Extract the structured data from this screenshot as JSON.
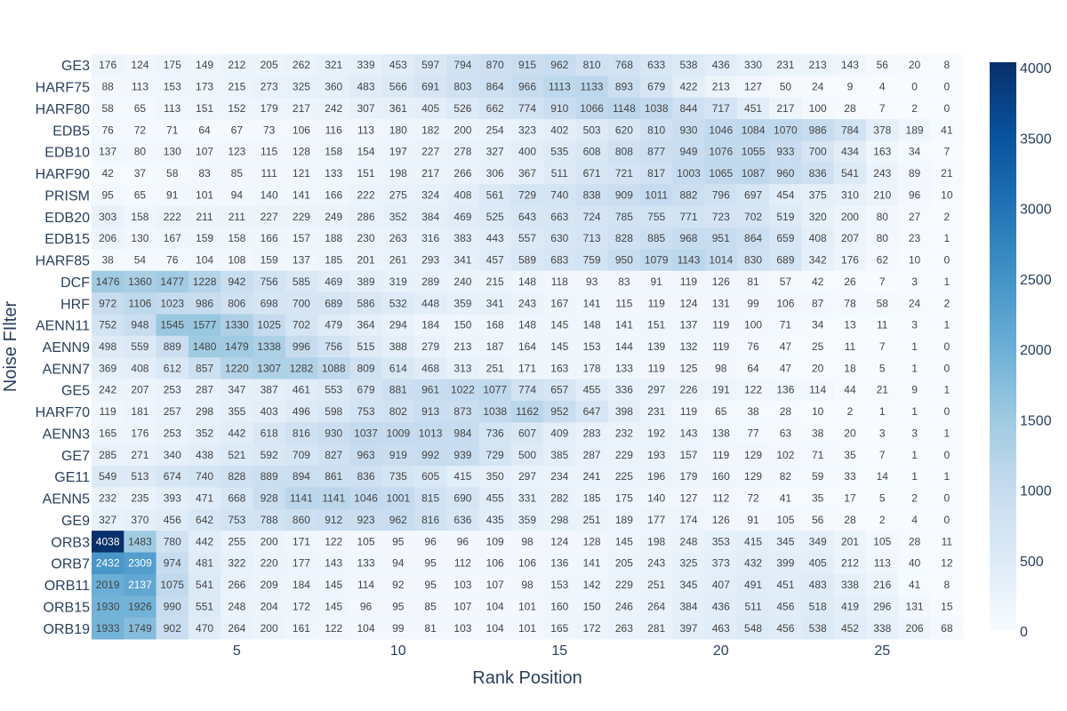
{
  "chart_data": {
    "type": "heatmap",
    "title": "",
    "xlabel": "Rank Position",
    "ylabel": "Noise FIlter",
    "x": [
      1,
      2,
      3,
      4,
      5,
      6,
      7,
      8,
      9,
      10,
      11,
      12,
      13,
      14,
      15,
      16,
      17,
      18,
      19,
      20,
      21,
      22,
      23,
      24,
      25,
      26,
      27
    ],
    "x_ticks": [
      5,
      10,
      15,
      20,
      25
    ],
    "y_categories": [
      "GE3",
      "HARF75",
      "HARF80",
      "EDB5",
      "EDB10",
      "HARF90",
      "PRISM",
      "EDB20",
      "EDB15",
      "HARF85",
      "DCF",
      "HRF",
      "AENN11",
      "AENN9",
      "AENN7",
      "GE5",
      "HARF70",
      "AENN3",
      "GE7",
      "GE11",
      "AENN5",
      "GE9",
      "ORB3",
      "ORB7",
      "ORB11",
      "ORB15",
      "ORB19"
    ],
    "z": [
      [
        176,
        124,
        175,
        149,
        212,
        205,
        262,
        321,
        339,
        453,
        597,
        794,
        870,
        915,
        962,
        810,
        768,
        633,
        538,
        436,
        330,
        231,
        213,
        143,
        56,
        20,
        8
      ],
      [
        88,
        113,
        153,
        173,
        215,
        273,
        325,
        360,
        483,
        566,
        691,
        803,
        864,
        966,
        1113,
        1133,
        893,
        679,
        422,
        213,
        127,
        50,
        24,
        9,
        4,
        0,
        0
      ],
      [
        58,
        65,
        113,
        151,
        152,
        179,
        217,
        242,
        307,
        361,
        405,
        526,
        662,
        774,
        910,
        1066,
        1148,
        1038,
        844,
        717,
        451,
        217,
        100,
        28,
        7,
        2,
        0
      ],
      [
        76,
        72,
        71,
        64,
        67,
        73,
        106,
        116,
        113,
        180,
        182,
        200,
        254,
        323,
        402,
        503,
        620,
        810,
        930,
        1046,
        1084,
        1070,
        986,
        784,
        378,
        189,
        41
      ],
      [
        137,
        80,
        130,
        107,
        123,
        115,
        128,
        158,
        154,
        197,
        227,
        278,
        327,
        400,
        535,
        608,
        808,
        877,
        949,
        1076,
        1055,
        933,
        700,
        434,
        163,
        34,
        7
      ],
      [
        42,
        37,
        58,
        83,
        85,
        111,
        121,
        133,
        151,
        198,
        217,
        266,
        306,
        367,
        511,
        671,
        721,
        817,
        1003,
        1065,
        1087,
        960,
        836,
        541,
        243,
        89,
        21
      ],
      [
        95,
        65,
        91,
        101,
        94,
        140,
        141,
        166,
        222,
        275,
        324,
        408,
        561,
        729,
        740,
        838,
        909,
        1011,
        882,
        796,
        697,
        454,
        375,
        310,
        210,
        96,
        10
      ],
      [
        303,
        158,
        222,
        211,
        211,
        227,
        229,
        249,
        286,
        352,
        384,
        469,
        525,
        643,
        663,
        724,
        785,
        755,
        771,
        723,
        702,
        519,
        320,
        200,
        80,
        27,
        2
      ],
      [
        206,
        130,
        167,
        159,
        158,
        166,
        157,
        188,
        230,
        263,
        316,
        383,
        443,
        557,
        630,
        713,
        828,
        885,
        968,
        951,
        864,
        659,
        408,
        207,
        80,
        23,
        1
      ],
      [
        38,
        54,
        76,
        104,
        108,
        159,
        137,
        185,
        201,
        261,
        293,
        341,
        457,
        589,
        683,
        759,
        950,
        1079,
        1143,
        1014,
        830,
        689,
        342,
        176,
        62,
        10,
        0
      ],
      [
        1476,
        1360,
        1477,
        1228,
        942,
        756,
        585,
        469,
        389,
        319,
        289,
        240,
        215,
        148,
        118,
        93,
        83,
        91,
        119,
        126,
        81,
        57,
        42,
        26,
        7,
        3,
        1
      ],
      [
        972,
        1106,
        1023,
        986,
        806,
        698,
        700,
        689,
        586,
        532,
        448,
        359,
        341,
        243,
        167,
        141,
        115,
        119,
        124,
        131,
        99,
        106,
        87,
        78,
        58,
        24,
        2
      ],
      [
        752,
        948,
        1545,
        1577,
        1330,
        1025,
        702,
        479,
        364,
        294,
        184,
        150,
        168,
        148,
        145,
        148,
        141,
        151,
        137,
        119,
        100,
        71,
        34,
        13,
        11,
        3,
        1
      ],
      [
        498,
        559,
        889,
        1480,
        1479,
        1338,
        996,
        756,
        515,
        388,
        279,
        213,
        187,
        164,
        145,
        153,
        144,
        139,
        132,
        119,
        76,
        47,
        25,
        11,
        7,
        1,
        0
      ],
      [
        369,
        408,
        612,
        857,
        1220,
        1307,
        1282,
        1088,
        809,
        614,
        468,
        313,
        251,
        171,
        163,
        178,
        133,
        119,
        125,
        98,
        64,
        47,
        20,
        18,
        5,
        1,
        0
      ],
      [
        242,
        207,
        253,
        287,
        347,
        387,
        461,
        553,
        679,
        881,
        961,
        1022,
        1077,
        774,
        657,
        455,
        336,
        297,
        226,
        191,
        122,
        136,
        114,
        44,
        21,
        9,
        1
      ],
      [
        119,
        181,
        257,
        298,
        355,
        403,
        496,
        598,
        753,
        802,
        913,
        873,
        1038,
        1162,
        952,
        647,
        398,
        231,
        119,
        65,
        38,
        28,
        10,
        2,
        1,
        1,
        0
      ],
      [
        165,
        176,
        253,
        352,
        442,
        618,
        816,
        930,
        1037,
        1009,
        1013,
        984,
        736,
        607,
        409,
        283,
        232,
        192,
        143,
        138,
        77,
        63,
        38,
        20,
        3,
        3,
        1
      ],
      [
        285,
        271,
        340,
        438,
        521,
        592,
        709,
        827,
        963,
        919,
        992,
        939,
        729,
        500,
        385,
        287,
        229,
        193,
        157,
        119,
        129,
        102,
        71,
        35,
        7,
        1,
        0
      ],
      [
        549,
        513,
        674,
        740,
        828,
        889,
        894,
        861,
        836,
        735,
        605,
        415,
        350,
        297,
        234,
        241,
        225,
        196,
        179,
        160,
        129,
        82,
        59,
        33,
        14,
        1,
        1
      ],
      [
        232,
        235,
        393,
        471,
        668,
        928,
        1141,
        1141,
        1046,
        1001,
        815,
        690,
        455,
        331,
        282,
        185,
        175,
        140,
        127,
        112,
        72,
        41,
        35,
        17,
        5,
        2,
        0
      ],
      [
        327,
        370,
        456,
        642,
        753,
        788,
        860,
        912,
        923,
        962,
        816,
        636,
        435,
        359,
        298,
        251,
        189,
        177,
        174,
        126,
        91,
        105,
        56,
        28,
        2,
        4,
        0
      ],
      [
        4038,
        1483,
        780,
        442,
        255,
        200,
        171,
        122,
        105,
        95,
        96,
        96,
        109,
        98,
        124,
        128,
        145,
        198,
        248,
        353,
        415,
        345,
        349,
        201,
        105,
        28,
        11
      ],
      [
        2432,
        2309,
        974,
        481,
        322,
        220,
        177,
        143,
        133,
        94,
        95,
        112,
        106,
        106,
        136,
        141,
        205,
        243,
        325,
        373,
        432,
        399,
        405,
        212,
        113,
        40,
        12
      ],
      [
        2019,
        2137,
        1075,
        541,
        266,
        209,
        184,
        145,
        114,
        92,
        95,
        103,
        107,
        98,
        153,
        142,
        229,
        251,
        345,
        407,
        491,
        451,
        483,
        338,
        216,
        41,
        8
      ],
      [
        1930,
        1926,
        990,
        551,
        248,
        204,
        172,
        145,
        96,
        95,
        85,
        107,
        104,
        101,
        160,
        150,
        246,
        264,
        384,
        436,
        511,
        456,
        518,
        419,
        296,
        131,
        15
      ],
      [
        1933,
        1749,
        902,
        470,
        264,
        200,
        161,
        122,
        104,
        99,
        81,
        103,
        104,
        101,
        165,
        172,
        263,
        281,
        397,
        463,
        548,
        456,
        538,
        452,
        338,
        206,
        68
      ]
    ],
    "zmin": 0,
    "zmax": 4038,
    "colorscale": "Blues",
    "colorbar_ticks": [
      0,
      500,
      1000,
      1500,
      2000,
      2500,
      3000,
      3500,
      4000
    ],
    "show_cell_labels": true
  }
}
